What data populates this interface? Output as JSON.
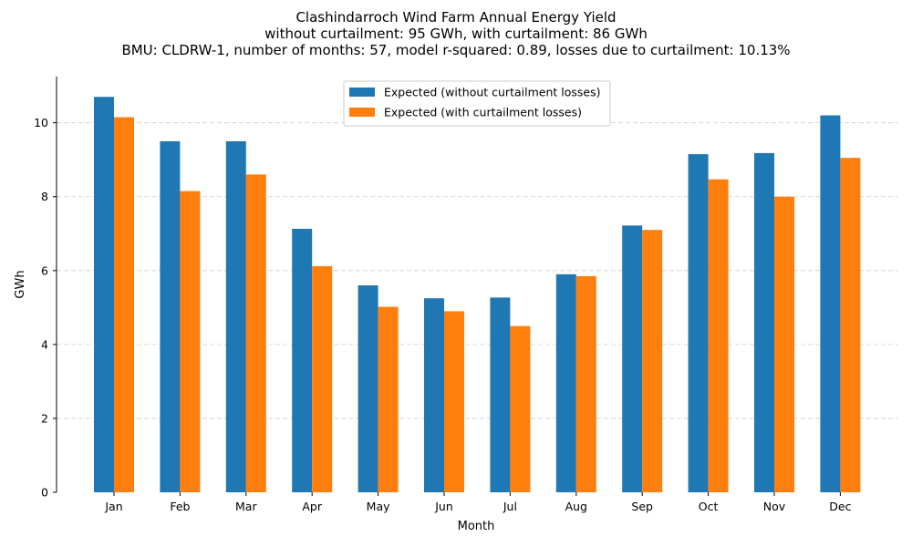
{
  "chart_data": {
    "type": "bar",
    "title": [
      "Clashindarroch Wind Farm Annual Energy Yield",
      "without curtailment: 95 GWh, with curtailment: 86 GWh",
      "BMU: CLDRW-1, number of months: 57, model r-squared: 0.89, losses due to curtailment: 10.13%"
    ],
    "xlabel": "Month",
    "ylabel": "GWh",
    "ylim": [
      0,
      11.25
    ],
    "yticks": [
      0,
      2,
      4,
      6,
      8,
      10
    ],
    "grid": "y-dashed",
    "legend_position": "top-center",
    "categories": [
      "Jan",
      "Feb",
      "Mar",
      "Apr",
      "May",
      "Jun",
      "Jul",
      "Aug",
      "Sep",
      "Oct",
      "Nov",
      "Dec"
    ],
    "series": [
      {
        "name": "Expected (without curtailment losses)",
        "color": "#1f77b4",
        "values": [
          10.7,
          9.5,
          9.5,
          7.13,
          5.6,
          5.25,
          5.27,
          5.9,
          7.22,
          9.15,
          9.18,
          10.2
        ]
      },
      {
        "name": "Expected (with curtailment losses)",
        "color": "#ff7f0e",
        "values": [
          10.15,
          8.15,
          8.6,
          6.12,
          5.02,
          4.9,
          4.5,
          5.85,
          7.1,
          8.47,
          8.0,
          9.05
        ]
      }
    ]
  }
}
